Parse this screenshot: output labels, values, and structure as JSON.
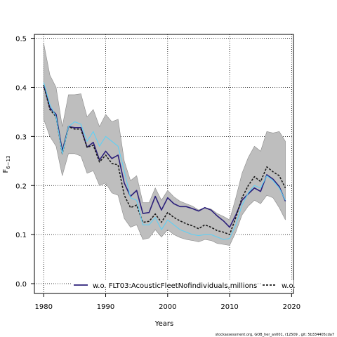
{
  "chart_data": {
    "type": "line",
    "xlabel": "Years",
    "ylabel_main": "F",
    "ylabel_sub": "6−13",
    "xlim": [
      1978.5,
      2020.3
    ],
    "ylim": [
      -0.02,
      0.508
    ],
    "xticks": [
      "1980",
      "1990",
      "2000",
      "2010",
      "2020"
    ],
    "yticks": [
      "0.0",
      "0.1",
      "0.2",
      "0.3",
      "0.4",
      "0.5"
    ],
    "grid": true,
    "legend_position": "bottom-center",
    "x": [
      1980,
      1981,
      1982,
      1983,
      1984,
      1985,
      1986,
      1987,
      1988,
      1989,
      1990,
      1991,
      1992,
      1993,
      1994,
      1995,
      1996,
      1997,
      1998,
      1999,
      2000,
      2001,
      2002,
      2003,
      2004,
      2005,
      2006,
      2007,
      2008,
      2009,
      2010,
      2011,
      2012,
      2013,
      2014,
      2015,
      2016,
      2017,
      2018,
      2019
    ],
    "band": {
      "color": "#bebebe",
      "upper": [
        0.49,
        0.425,
        0.4,
        0.32,
        0.385,
        0.385,
        0.387,
        0.34,
        0.355,
        0.32,
        0.345,
        0.33,
        0.335,
        0.25,
        0.21,
        0.22,
        0.165,
        0.165,
        0.195,
        0.17,
        0.19,
        0.177,
        0.168,
        0.163,
        0.158,
        0.15,
        0.155,
        0.152,
        0.143,
        0.137,
        0.13,
        0.175,
        0.225,
        0.257,
        0.28,
        0.27,
        0.31,
        0.307,
        0.31,
        0.29
      ],
      "lower": [
        0.335,
        0.3,
        0.28,
        0.22,
        0.265,
        0.265,
        0.26,
        0.225,
        0.23,
        0.2,
        0.205,
        0.185,
        0.18,
        0.133,
        0.115,
        0.12,
        0.09,
        0.093,
        0.11,
        0.095,
        0.11,
        0.1,
        0.094,
        0.09,
        0.088,
        0.085,
        0.09,
        0.088,
        0.082,
        0.08,
        0.078,
        0.105,
        0.14,
        0.158,
        0.17,
        0.163,
        0.18,
        0.175,
        0.155,
        0.13
      ]
    },
    "series": [
      {
        "name": "w.o. FLT03:AcousticFleetNofindividuals,millions",
        "color": "#2b1f7a",
        "dash": "",
        "width": 1.6,
        "values": [
          0.405,
          0.358,
          0.345,
          0.27,
          0.32,
          0.318,
          0.318,
          0.278,
          0.288,
          0.252,
          0.27,
          0.255,
          0.262,
          0.205,
          0.178,
          0.19,
          0.143,
          0.145,
          0.178,
          0.15,
          0.175,
          0.163,
          0.157,
          0.157,
          0.153,
          0.148,
          0.155,
          0.15,
          0.138,
          0.128,
          0.115,
          0.14,
          0.17,
          0.183,
          0.195,
          0.188,
          0.222,
          0.213,
          0.198,
          0.168
        ]
      },
      {
        "name": "w.o.",
        "color": "#1a1a1a",
        "dash": "3,2",
        "width": 1.6,
        "values": [
          0.405,
          0.355,
          0.34,
          0.265,
          0.32,
          0.315,
          0.315,
          0.278,
          0.282,
          0.248,
          0.262,
          0.245,
          0.242,
          0.18,
          0.155,
          0.16,
          0.125,
          0.127,
          0.142,
          0.125,
          0.145,
          0.135,
          0.128,
          0.122,
          0.118,
          0.112,
          0.12,
          0.115,
          0.108,
          0.105,
          0.1,
          0.135,
          0.175,
          0.2,
          0.218,
          0.208,
          0.238,
          0.228,
          0.22,
          0.195
        ]
      },
      {
        "name": "",
        "color": "#5fd0f5",
        "dash": "",
        "width": 1.1,
        "values": [
          0.41,
          0.365,
          0.34,
          0.265,
          0.32,
          0.33,
          0.325,
          0.29,
          0.31,
          0.28,
          0.3,
          0.29,
          0.28,
          0.23,
          0.175,
          0.17,
          0.12,
          0.12,
          0.135,
          0.11,
          0.13,
          0.12,
          0.11,
          0.105,
          0.1,
          0.098,
          0.1,
          0.1,
          0.095,
          0.09,
          0.092,
          0.12,
          0.16,
          0.185,
          0.2,
          0.195,
          0.22,
          0.21,
          0.195,
          0.17
        ]
      }
    ],
    "legend": [
      {
        "label": "w.o. FLT03:AcousticFleetNofindividuals,millions",
        "color": "#2b1f7a",
        "dash": ""
      },
      {
        "label": "w.o.",
        "color": "#1a1a1a",
        "dash": "3,2"
      }
    ]
  },
  "footer_text": "stockassessment.org, GOB_her_an001, r12509 , git: 5b334405cda7"
}
